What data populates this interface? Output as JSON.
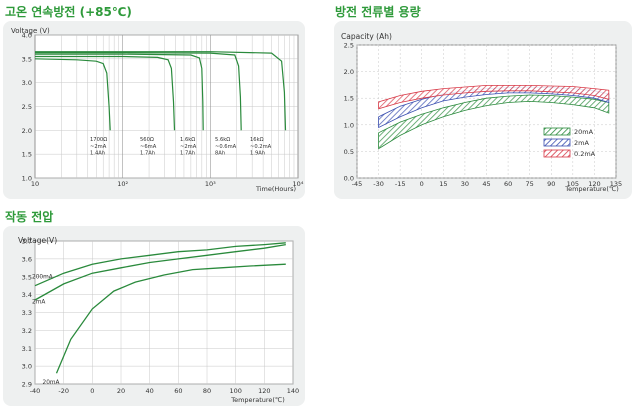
{
  "colors": {
    "heading": "#2e9a3a",
    "panel": "#eef0f0",
    "plot_bg": "#ffffff",
    "grid": "#c8c8c8",
    "series_green": "#2a8a3c",
    "band_blue": "#3a4fb0",
    "band_red": "#d83a48"
  },
  "headings": [
    "고온 연속방전 (+85℃)",
    "방전 전류별 용량",
    "작동 전압"
  ],
  "chart_data": [
    {
      "type": "line",
      "title": "고온 연속방전 (+85℃)",
      "ylabel": "Voltage (V)",
      "xlabel": "Time(Hours)",
      "x_scale": "log",
      "xlim": [
        10,
        10000
      ],
      "ylim": [
        1.0,
        4.0
      ],
      "x_tick_labels": [
        "10",
        "10²",
        "10³",
        "10⁴"
      ],
      "y_tick_labels": [
        "1.0",
        "1.5",
        "2.0",
        "2.5",
        "3.0",
        "3.5",
        "4.0"
      ],
      "series": [
        {
          "x": [
            10,
            30,
            50,
            60,
            66,
            70,
            72
          ],
          "y": [
            3.5,
            3.48,
            3.45,
            3.4,
            3.2,
            2.5,
            2.0
          ]
        },
        {
          "x": [
            10,
            100,
            250,
            330,
            360,
            380,
            390
          ],
          "y": [
            3.55,
            3.55,
            3.53,
            3.48,
            3.3,
            2.6,
            2.0
          ]
        },
        {
          "x": [
            10,
            100,
            600,
            750,
            800,
            820,
            830
          ],
          "y": [
            3.6,
            3.6,
            3.58,
            3.52,
            3.3,
            2.6,
            2.0
          ]
        },
        {
          "x": [
            10,
            100,
            1000,
            1900,
            2100,
            2200,
            2250
          ],
          "y": [
            3.63,
            3.63,
            3.62,
            3.58,
            3.35,
            2.7,
            2.0
          ]
        },
        {
          "x": [
            10,
            100,
            1000,
            5000,
            6500,
            7000,
            7200
          ],
          "y": [
            3.65,
            3.65,
            3.65,
            3.62,
            3.45,
            2.8,
            2.0
          ]
        }
      ],
      "annotations": [
        {
          "lines": [
            "1700Ω",
            "~2mA",
            "1.4Ah"
          ]
        },
        {
          "lines": [
            "560Ω",
            "~6mA",
            "1.7Ah"
          ]
        },
        {
          "lines": [
            "1.6kΩ",
            "~2mA",
            "1.7Ah"
          ]
        },
        {
          "lines": [
            "5.6kΩ",
            "~0.6mA",
            "8Ah"
          ]
        },
        {
          "lines": [
            "16kΩ",
            "~0.2mA",
            "1.9Ah"
          ]
        }
      ],
      "grid": true
    },
    {
      "type": "area",
      "title": "방전 전류별 용량",
      "ylabel": "Capacity (Ah)",
      "xlabel": "Temperature(℃)",
      "xlim": [
        -45,
        135
      ],
      "ylim": [
        0.0,
        2.5
      ],
      "x_tick_labels": [
        "-45",
        "-30",
        "-15",
        "0",
        "15",
        "30",
        "45",
        "60",
        "75",
        "90",
        "105",
        "120",
        "135"
      ],
      "y_tick_labels": [
        "0.0",
        "0.5",
        "1.0",
        "1.5",
        "2.0",
        "2.5"
      ],
      "x": [
        -30,
        -15,
        0,
        15,
        30,
        45,
        60,
        75,
        90,
        105,
        120,
        130
      ],
      "series": [
        {
          "name": "20mA",
          "upper": [
            0.85,
            1.05,
            1.2,
            1.32,
            1.42,
            1.5,
            1.54,
            1.56,
            1.55,
            1.52,
            1.48,
            1.42
          ],
          "lower": [
            0.55,
            0.8,
            1.0,
            1.15,
            1.27,
            1.36,
            1.42,
            1.44,
            1.42,
            1.38,
            1.32,
            1.22
          ]
        },
        {
          "name": "2mA",
          "upper": [
            1.15,
            1.35,
            1.48,
            1.58,
            1.64,
            1.68,
            1.7,
            1.71,
            1.7,
            1.68,
            1.64,
            1.58
          ],
          "lower": [
            0.95,
            1.15,
            1.32,
            1.45,
            1.52,
            1.57,
            1.6,
            1.6,
            1.58,
            1.55,
            1.5,
            1.42
          ]
        },
        {
          "name": "0.2mA",
          "upper": [
            1.43,
            1.55,
            1.63,
            1.68,
            1.71,
            1.74,
            1.74,
            1.74,
            1.73,
            1.72,
            1.68,
            1.65
          ],
          "lower": [
            1.3,
            1.42,
            1.5,
            1.56,
            1.6,
            1.63,
            1.64,
            1.64,
            1.62,
            1.6,
            1.55,
            1.48
          ]
        }
      ],
      "legend": "right",
      "grid": true
    },
    {
      "type": "line",
      "title": "작동 전압",
      "ylabel": "Voltage(V)",
      "xlabel": "Temperature(℃)",
      "xlim": [
        -40,
        140
      ],
      "ylim": [
        2.9,
        3.7
      ],
      "x_tick_labels": [
        "-40",
        "-20",
        "0",
        "20",
        "40",
        "60",
        "80",
        "100",
        "120",
        "140"
      ],
      "y_tick_labels": [
        "2.9",
        "3.0",
        "3.1",
        "3.2",
        "3.3",
        "3.4",
        "3.5",
        "3.6",
        "3.7"
      ],
      "series": [
        {
          "name": "200mA",
          "x": [
            -40,
            -20,
            0,
            20,
            40,
            60,
            80,
            100,
            120,
            135
          ],
          "y": [
            3.45,
            3.52,
            3.57,
            3.6,
            3.62,
            3.64,
            3.65,
            3.67,
            3.68,
            3.69
          ]
        },
        {
          "name": "2mA",
          "x": [
            -40,
            -20,
            0,
            20,
            40,
            60,
            80,
            100,
            120,
            135
          ],
          "y": [
            3.37,
            3.46,
            3.52,
            3.55,
            3.58,
            3.6,
            3.62,
            3.64,
            3.66,
            3.68
          ]
        },
        {
          "name": "20mA",
          "x": [
            -25,
            -15,
            0,
            15,
            30,
            50,
            70,
            90,
            110,
            135
          ],
          "y": [
            2.96,
            3.15,
            3.32,
            3.42,
            3.47,
            3.51,
            3.54,
            3.55,
            3.56,
            3.57
          ]
        }
      ],
      "grid": true
    }
  ]
}
